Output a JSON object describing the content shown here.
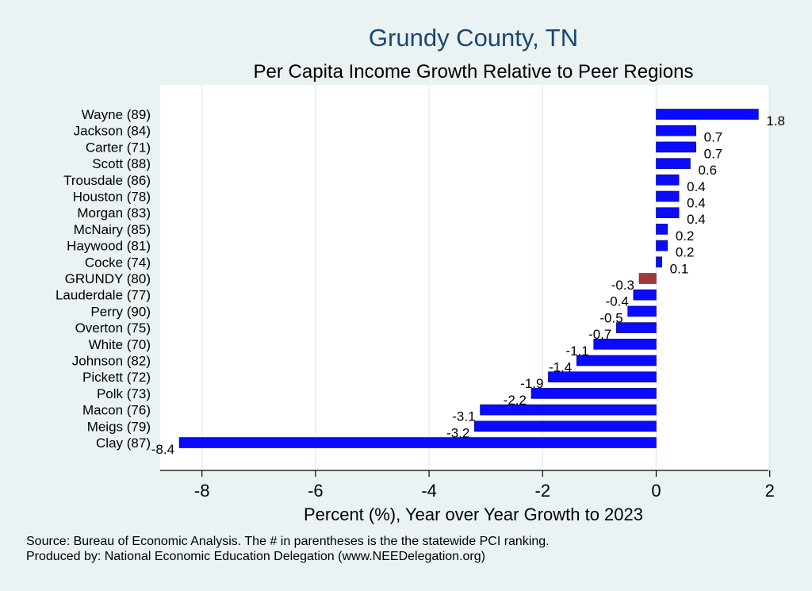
{
  "chart_data": {
    "type": "bar",
    "orientation": "horizontal",
    "title": "Grundy County, TN",
    "subtitle": "Per Capita Income Growth Relative to Peer Regions",
    "xlabel": "Percent (%), Year over Year Growth to 2023",
    "ylabel": "",
    "xlim": [
      -8.6,
      2.4
    ],
    "xticks": [
      -8,
      -6,
      -4,
      -2,
      0,
      2
    ],
    "grid": true,
    "legend": "none",
    "highlight_category": "GRUNDY (80)",
    "colors": {
      "bar": "#0a0aff",
      "highlight": "#a03a3a",
      "plot_bg": "#ffffff",
      "page_bg": "#eaf2f3",
      "title": "#1a4770",
      "grid": "#e6eef0"
    },
    "categories": [
      "Wayne (89)",
      "Jackson (84)",
      "Carter (71)",
      "Scott (88)",
      "Trousdale (86)",
      "Houston (78)",
      "Morgan (83)",
      "McNairy (85)",
      "Haywood (81)",
      "Cocke (74)",
      "GRUNDY (80)",
      "Lauderdale (77)",
      "Perry (90)",
      "Overton (75)",
      "White (70)",
      "Johnson (82)",
      "Pickett (72)",
      "Polk (73)",
      "Macon (76)",
      "Meigs (79)",
      "Clay (87)"
    ],
    "values": [
      1.8,
      0.7,
      0.7,
      0.6,
      0.4,
      0.4,
      0.4,
      0.2,
      0.2,
      0.1,
      -0.3,
      -0.4,
      -0.5,
      -0.7,
      -1.1,
      -1.4,
      -1.9,
      -2.2,
      -3.1,
      -3.2,
      -8.4
    ],
    "value_labels": [
      "1.8",
      "0.7",
      "0.7",
      "0.6",
      "0.4",
      "0.4",
      "0.4",
      "0.2",
      "0.2",
      "0.1",
      "-0.3",
      "-0.4",
      "-0.5",
      "-0.7",
      "-1.1",
      "-1.4",
      "-1.9",
      "-2.2",
      "-3.1",
      "-3.2",
      "-8.4"
    ]
  },
  "footer": {
    "source": "Source: Bureau of Economic Analysis. The # in parentheses is the the statewide PCI ranking.",
    "produced_by": "Produced by: National Economic Education Delegation (www.NEEDelegation.org)"
  }
}
